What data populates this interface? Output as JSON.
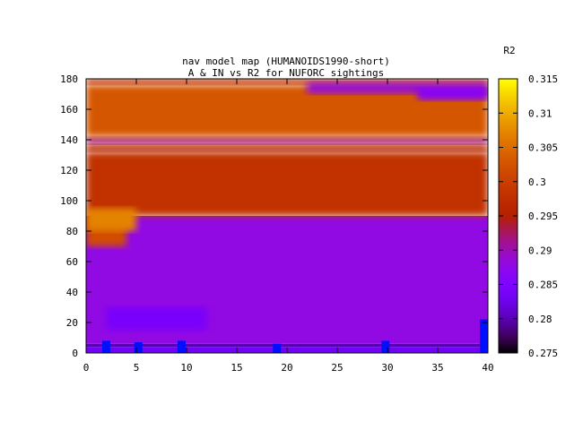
{
  "chart_data": {
    "type": "heatmap",
    "title_line1": "nav model map (HUMANOIDS1990-short)",
    "title_line2": "A & IN vs R2 for NUFORC sightings",
    "colorbar_label": "R2",
    "xlim": [
      0,
      40
    ],
    "ylim": [
      0,
      180
    ],
    "x_ticks": [
      0,
      5,
      10,
      15,
      20,
      25,
      30,
      35,
      40
    ],
    "y_ticks": [
      0,
      20,
      40,
      60,
      80,
      100,
      120,
      140,
      160,
      180
    ],
    "colorbar_range": [
      0.275,
      0.315
    ],
    "colorbar_ticks": [
      0.275,
      0.28,
      0.285,
      0.29,
      0.295,
      0.3,
      0.305,
      0.31,
      0.315
    ],
    "grid": false,
    "palette": "gnuplot-rgbformulae-7-5-15",
    "regions": [
      {
        "x0": 0,
        "x1": 40,
        "y0": 0,
        "y1": 4,
        "value": 0.283
      },
      {
        "x0": 0,
        "x1": 40,
        "y0": 4,
        "y1": 6,
        "value": 0.28
      },
      {
        "x0": 0,
        "x1": 40,
        "y0": 6,
        "y1": 90,
        "value": 0.288
      },
      {
        "x0": 2,
        "x1": 12,
        "y0": 15,
        "y1": 30,
        "value": 0.284
      },
      {
        "x0": 0,
        "x1": 4,
        "y0": 70,
        "y1": 90,
        "value": 0.302
      },
      {
        "x0": 0,
        "x1": 40,
        "y0": 90,
        "y1": 132,
        "value": 0.298
      },
      {
        "x0": 0,
        "x1": 5,
        "y0": 80,
        "y1": 95,
        "value": 0.307
      },
      {
        "x0": 0,
        "x1": 40,
        "y0": 132,
        "y1": 137,
        "value": 0.296
      },
      {
        "x0": 0,
        "x1": 40,
        "y0": 137,
        "y1": 142,
        "value": 0.292
      },
      {
        "x0": 0,
        "x1": 40,
        "y0": 142,
        "y1": 176,
        "value": 0.303
      },
      {
        "x0": 0,
        "x1": 40,
        "y0": 176,
        "y1": 180,
        "value": 0.298
      },
      {
        "x0": 22,
        "x1": 40,
        "y0": 170,
        "y1": 178,
        "value": 0.289
      },
      {
        "x0": 33,
        "x1": 40,
        "y0": 166,
        "y1": 174,
        "value": 0.286
      }
    ],
    "markers": [
      {
        "x": 2,
        "y0": 0,
        "y1": 8
      },
      {
        "x": 5.2,
        "y0": 0,
        "y1": 7
      },
      {
        "x": 9.5,
        "y0": 0,
        "y1": 8
      },
      {
        "x": 19,
        "y0": 0,
        "y1": 6
      },
      {
        "x": 29.8,
        "y0": 0,
        "y1": 8
      },
      {
        "x": 39.6,
        "y0": 0,
        "y1": 22
      }
    ],
    "marker_color": "#0010ff"
  }
}
